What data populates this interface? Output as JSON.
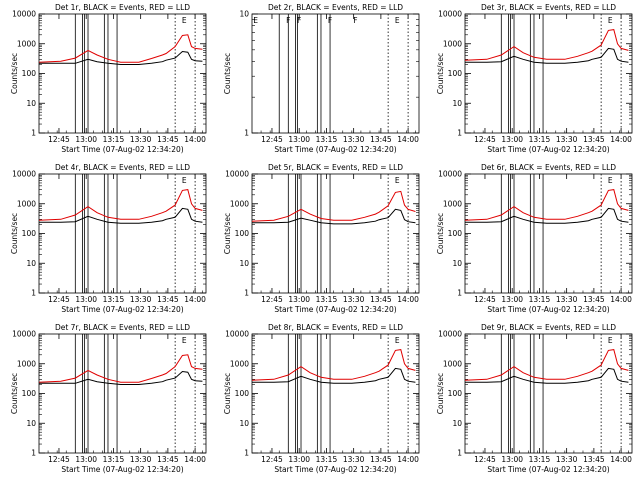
{
  "figure": {
    "xlabel": "Start Time (07-Aug-02 12:34:20)",
    "ylabel": "Counts/sec",
    "x_tick_labels": [
      "12:45",
      "13:00",
      "13:15",
      "13:30",
      "13:45",
      "14:00"
    ],
    "y_tick_labels": [
      "1",
      "10",
      "100",
      "1000",
      "10000"
    ]
  },
  "chart_data": [
    {
      "type": "line",
      "title": "Det 1r, BLACK = Events, RED = LLD",
      "xlabel": "Start Time (07-Aug-02 12:34:20)",
      "ylabel": "Counts/sec",
      "x_ticks": [
        "12:45",
        "13:00",
        "13:15",
        "13:30",
        "13:45",
        "14:00"
      ],
      "xlim_minutes": [
        0,
        92
      ],
      "ylim": [
        1,
        10000
      ],
      "yscale": "log",
      "gap_lines_minutes": [
        20,
        24,
        25,
        27,
        36,
        38,
        43
      ],
      "dotted_lines_minutes": [
        75,
        86
      ],
      "flag_markers": [
        {
          "label": "E",
          "x": 80
        }
      ],
      "series": [
        {
          "name": "RED",
          "color": "#e00000",
          "x": [
            0,
            12,
            20,
            27,
            32,
            38,
            45,
            55,
            62,
            68,
            70,
            75,
            79,
            82,
            84,
            86,
            90
          ],
          "y": [
            240,
            260,
            330,
            600,
            420,
            300,
            240,
            240,
            320,
            420,
            470,
            800,
            1900,
            2000,
            800,
            700,
            650
          ]
        },
        {
          "name": "BLACK",
          "color": "#000000",
          "x": [
            0,
            12,
            20,
            27,
            32,
            38,
            45,
            55,
            62,
            68,
            70,
            75,
            79,
            82,
            84,
            86,
            90
          ],
          "y": [
            220,
            220,
            220,
            300,
            250,
            220,
            200,
            200,
            220,
            250,
            280,
            330,
            550,
            520,
            300,
            270,
            260
          ]
        }
      ]
    },
    {
      "type": "line",
      "title": "Det 2r, BLACK = Events, RED = LLD",
      "xlabel": "Start Time (07-Aug-02 12:34:20)",
      "ylabel": "Counts/sec",
      "x_ticks": [
        "12:45",
        "13:00",
        "13:15",
        "13:30",
        "13:45",
        "14:00"
      ],
      "xlim_minutes": [
        0,
        92
      ],
      "ylim": [
        1,
        10
      ],
      "yscale": "log",
      "y_ticks": [
        "1",
        "10"
      ],
      "gap_lines_minutes": [
        15,
        20,
        24,
        25,
        36,
        38,
        43
      ],
      "dotted_lines_minutes": [
        75,
        86
      ],
      "flag_markers": [
        {
          "label": "E",
          "x": 2
        },
        {
          "label": "F",
          "x": 20
        },
        {
          "label": "F",
          "x": 26
        },
        {
          "label": "F",
          "x": 43
        },
        {
          "label": "F",
          "x": 57
        },
        {
          "label": "E",
          "x": 80
        }
      ],
      "series": []
    },
    {
      "type": "line",
      "title": "Det 3r, BLACK = Events, RED = LLD",
      "xlabel": "Start Time (07-Aug-02 12:34:20)",
      "ylabel": "Counts/sec",
      "x_ticks": [
        "12:45",
        "13:00",
        "13:15",
        "13:30",
        "13:45",
        "14:00"
      ],
      "xlim_minutes": [
        0,
        92
      ],
      "ylim": [
        1,
        10000
      ],
      "yscale": "log",
      "gap_lines_minutes": [
        20,
        24,
        25,
        27,
        36,
        38,
        43
      ],
      "dotted_lines_minutes": [
        75,
        86
      ],
      "flag_markers": [
        {
          "label": "E",
          "x": 80
        }
      ],
      "series": [
        {
          "name": "RED",
          "color": "#e00000",
          "x": [
            0,
            12,
            20,
            27,
            32,
            38,
            45,
            55,
            62,
            68,
            70,
            75,
            79,
            82,
            84,
            86,
            90
          ],
          "y": [
            280,
            300,
            420,
            800,
            500,
            350,
            300,
            300,
            380,
            500,
            560,
            900,
            2800,
            3000,
            1000,
            700,
            600
          ]
        },
        {
          "name": "BLACK",
          "color": "#000000",
          "x": [
            0,
            12,
            20,
            27,
            32,
            38,
            45,
            55,
            62,
            68,
            70,
            75,
            79,
            82,
            84,
            86,
            90
          ],
          "y": [
            240,
            240,
            250,
            380,
            300,
            240,
            220,
            220,
            240,
            270,
            300,
            350,
            700,
            650,
            300,
            260,
            240
          ]
        }
      ]
    },
    {
      "type": "line",
      "title": "Det 4r, BLACK = Events, RED = LLD",
      "xlabel": "Start Time (07-Aug-02 12:34:20)",
      "ylabel": "Counts/sec",
      "x_ticks": [
        "12:45",
        "13:00",
        "13:15",
        "13:30",
        "13:45",
        "14:00"
      ],
      "xlim_minutes": [
        0,
        92
      ],
      "ylim": [
        1,
        10000
      ],
      "yscale": "log",
      "gap_lines_minutes": [
        20,
        24,
        25,
        27,
        36,
        38,
        43
      ],
      "dotted_lines_minutes": [
        75,
        86
      ],
      "flag_markers": [
        {
          "label": "E",
          "x": 80
        }
      ],
      "series": [
        {
          "name": "RED",
          "color": "#e00000",
          "x": [
            0,
            12,
            20,
            27,
            32,
            38,
            45,
            55,
            62,
            68,
            70,
            75,
            79,
            82,
            84,
            86,
            90
          ],
          "y": [
            280,
            300,
            420,
            800,
            500,
            350,
            300,
            300,
            380,
            500,
            560,
            900,
            2800,
            3000,
            1000,
            700,
            600
          ]
        },
        {
          "name": "BLACK",
          "color": "#000000",
          "x": [
            0,
            12,
            20,
            27,
            32,
            38,
            45,
            55,
            62,
            68,
            70,
            75,
            79,
            82,
            84,
            86,
            90
          ],
          "y": [
            240,
            240,
            250,
            380,
            300,
            240,
            220,
            220,
            240,
            270,
            300,
            350,
            700,
            650,
            300,
            260,
            240
          ]
        }
      ]
    },
    {
      "type": "line",
      "title": "Det 5r, BLACK = Events, RED = LLD",
      "xlabel": "Start Time (07-Aug-02 12:34:20)",
      "ylabel": "Counts/sec",
      "x_ticks": [
        "12:45",
        "13:00",
        "13:15",
        "13:30",
        "13:45",
        "14:00"
      ],
      "xlim_minutes": [
        0,
        92
      ],
      "ylim": [
        1,
        10000
      ],
      "yscale": "log",
      "gap_lines_minutes": [
        20,
        24,
        25,
        27,
        36,
        38,
        43
      ],
      "dotted_lines_minutes": [
        75,
        86
      ],
      "flag_markers": [
        {
          "label": "E",
          "x": 80
        }
      ],
      "series": [
        {
          "name": "RED",
          "color": "#e00000",
          "x": [
            0,
            12,
            20,
            27,
            32,
            38,
            45,
            55,
            62,
            68,
            70,
            75,
            79,
            82,
            84,
            86,
            90
          ],
          "y": [
            260,
            280,
            380,
            650,
            450,
            320,
            280,
            280,
            350,
            450,
            520,
            850,
            2400,
            2600,
            900,
            650,
            550
          ]
        },
        {
          "name": "BLACK",
          "color": "#000000",
          "x": [
            0,
            12,
            20,
            27,
            32,
            38,
            45,
            55,
            62,
            68,
            70,
            75,
            79,
            82,
            84,
            86,
            90
          ],
          "y": [
            230,
            230,
            240,
            330,
            280,
            230,
            210,
            210,
            230,
            260,
            290,
            340,
            650,
            600,
            290,
            250,
            230
          ]
        }
      ]
    },
    {
      "type": "line",
      "title": "Det 6r, BLACK = Events, RED = LLD",
      "xlabel": "Start Time (07-Aug-02 12:34:20)",
      "ylabel": "Counts/sec",
      "x_ticks": [
        "12:45",
        "13:00",
        "13:15",
        "13:30",
        "13:45",
        "14:00"
      ],
      "xlim_minutes": [
        0,
        92
      ],
      "ylim": [
        1,
        10000
      ],
      "yscale": "log",
      "gap_lines_minutes": [
        20,
        24,
        25,
        27,
        36,
        38,
        43
      ],
      "dotted_lines_minutes": [
        75,
        86
      ],
      "flag_markers": [
        {
          "label": "E",
          "x": 80
        }
      ],
      "series": [
        {
          "name": "RED",
          "color": "#e00000",
          "x": [
            0,
            12,
            20,
            27,
            32,
            38,
            45,
            55,
            62,
            68,
            70,
            75,
            79,
            82,
            84,
            86,
            90
          ],
          "y": [
            280,
            300,
            420,
            800,
            500,
            350,
            300,
            300,
            380,
            500,
            560,
            900,
            2800,
            3000,
            1000,
            700,
            600
          ]
        },
        {
          "name": "BLACK",
          "color": "#000000",
          "x": [
            0,
            12,
            20,
            27,
            32,
            38,
            45,
            55,
            62,
            68,
            70,
            75,
            79,
            82,
            84,
            86,
            90
          ],
          "y": [
            240,
            240,
            250,
            380,
            300,
            240,
            220,
            220,
            240,
            270,
            300,
            350,
            700,
            650,
            300,
            260,
            240
          ]
        }
      ]
    },
    {
      "type": "line",
      "title": "Det 7r, BLACK = Events, RED = LLD",
      "xlabel": "Start Time (07-Aug-02 12:34:20)",
      "ylabel": "Counts/sec",
      "x_ticks": [
        "12:45",
        "13:00",
        "13:15",
        "13:30",
        "13:45",
        "14:00"
      ],
      "xlim_minutes": [
        0,
        92
      ],
      "ylim": [
        1,
        10000
      ],
      "yscale": "log",
      "gap_lines_minutes": [
        20,
        24,
        25,
        27,
        36,
        38,
        43
      ],
      "dotted_lines_minutes": [
        75,
        86
      ],
      "flag_markers": [
        {
          "label": "E",
          "x": 80
        }
      ],
      "series": [
        {
          "name": "RED",
          "color": "#e00000",
          "x": [
            0,
            12,
            20,
            27,
            32,
            38,
            45,
            55,
            62,
            68,
            70,
            75,
            79,
            82,
            84,
            86,
            90
          ],
          "y": [
            240,
            260,
            330,
            600,
            420,
            300,
            240,
            240,
            320,
            420,
            470,
            800,
            1900,
            2000,
            800,
            700,
            650
          ]
        },
        {
          "name": "BLACK",
          "color": "#000000",
          "x": [
            0,
            12,
            20,
            27,
            32,
            38,
            45,
            55,
            62,
            68,
            70,
            75,
            79,
            82,
            84,
            86,
            90
          ],
          "y": [
            220,
            220,
            220,
            300,
            250,
            220,
            200,
            200,
            220,
            250,
            280,
            330,
            550,
            520,
            300,
            270,
            260
          ]
        }
      ]
    },
    {
      "type": "line",
      "title": "Det 8r, BLACK = Events, RED = LLD",
      "xlabel": "Start Time (07-Aug-02 12:34:20)",
      "ylabel": "Counts/sec",
      "x_ticks": [
        "12:45",
        "13:00",
        "13:15",
        "13:30",
        "13:45",
        "14:00"
      ],
      "xlim_minutes": [
        0,
        92
      ],
      "ylim": [
        1,
        10000
      ],
      "yscale": "log",
      "gap_lines_minutes": [
        20,
        24,
        25,
        27,
        36,
        38,
        43
      ],
      "dotted_lines_minutes": [
        75,
        86
      ],
      "flag_markers": [
        {
          "label": "E",
          "x": 80
        }
      ],
      "series": [
        {
          "name": "RED",
          "color": "#e00000",
          "x": [
            0,
            12,
            20,
            27,
            32,
            38,
            45,
            55,
            62,
            68,
            70,
            75,
            79,
            82,
            84,
            86,
            90
          ],
          "y": [
            280,
            300,
            420,
            800,
            500,
            350,
            300,
            300,
            380,
            500,
            560,
            900,
            2800,
            3000,
            1000,
            700,
            600
          ]
        },
        {
          "name": "BLACK",
          "color": "#000000",
          "x": [
            0,
            12,
            20,
            27,
            32,
            38,
            45,
            55,
            62,
            68,
            70,
            75,
            79,
            82,
            84,
            86,
            90
          ],
          "y": [
            240,
            240,
            250,
            380,
            300,
            240,
            220,
            220,
            240,
            270,
            300,
            350,
            700,
            650,
            300,
            260,
            240
          ]
        }
      ]
    },
    {
      "type": "line",
      "title": "Det 9r, BLACK = Events, RED = LLD",
      "xlabel": "Start Time (07-Aug-02 12:34:20)",
      "ylabel": "Counts/sec",
      "x_ticks": [
        "12:45",
        "13:00",
        "13:15",
        "13:30",
        "13:45",
        "14:00"
      ],
      "xlim_minutes": [
        0,
        92
      ],
      "ylim": [
        1,
        10000
      ],
      "yscale": "log",
      "gap_lines_minutes": [
        20,
        24,
        25,
        27,
        36,
        38,
        43
      ],
      "dotted_lines_minutes": [
        75,
        86
      ],
      "flag_markers": [
        {
          "label": "E",
          "x": 80
        }
      ],
      "series": [
        {
          "name": "RED",
          "color": "#e00000",
          "x": [
            0,
            12,
            20,
            27,
            32,
            38,
            45,
            55,
            62,
            68,
            70,
            75,
            79,
            82,
            84,
            86,
            90
          ],
          "y": [
            280,
            300,
            420,
            800,
            500,
            350,
            300,
            300,
            380,
            500,
            560,
            900,
            2800,
            3000,
            1000,
            700,
            600
          ]
        },
        {
          "name": "BLACK",
          "color": "#000000",
          "x": [
            0,
            12,
            20,
            27,
            32,
            38,
            45,
            55,
            62,
            68,
            70,
            75,
            79,
            82,
            84,
            86,
            90
          ],
          "y": [
            240,
            240,
            250,
            380,
            300,
            240,
            220,
            220,
            240,
            270,
            300,
            350,
            700,
            650,
            300,
            260,
            240
          ]
        }
      ]
    }
  ]
}
